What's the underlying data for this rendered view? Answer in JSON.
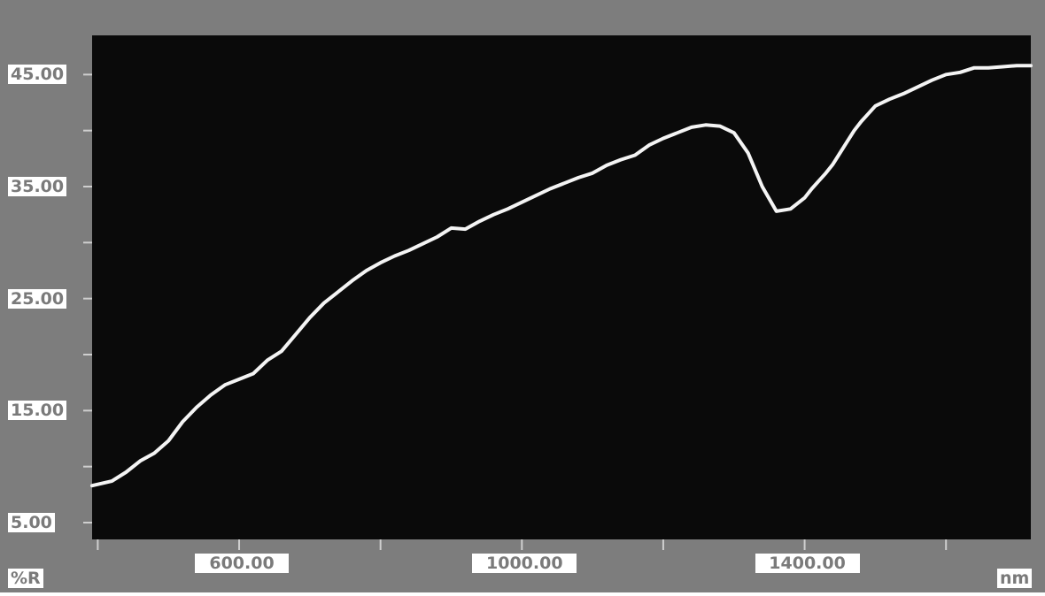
{
  "colors": {
    "frame_background": "#7d7d7d",
    "plot_background": "#0a0a0a",
    "line": "#f4f4f4",
    "label_box": "#ffffff",
    "label_text": "#7a7a7a"
  },
  "axis": {
    "y_unit_label": "%R",
    "x_unit_label": "nm"
  },
  "chart_data": {
    "type": "line",
    "xlabel": "nm",
    "ylabel": "%R",
    "xlim": [
      392,
      1720
    ],
    "ylim": [
      3.5,
      48.5
    ],
    "y_ticks_labeled": [
      "45.00",
      "35.00",
      "25.00",
      "15.00",
      "5.00"
    ],
    "y_tick_values": [
      45,
      35,
      25,
      15,
      5
    ],
    "y_minor_ticks": [
      40,
      30,
      20,
      10
    ],
    "x_ticks_labeled": [
      "600.00",
      "1000.00",
      "1400.00"
    ],
    "x_tick_values": [
      600,
      1000,
      1400
    ],
    "x_minor_ticks": [
      400,
      800,
      1200,
      1600
    ],
    "grid": false,
    "x": [
      392,
      420,
      440,
      460,
      480,
      500,
      520,
      540,
      560,
      580,
      600,
      620,
      640,
      660,
      680,
      700,
      720,
      740,
      760,
      780,
      800,
      820,
      840,
      860,
      880,
      900,
      920,
      940,
      960,
      980,
      1000,
      1020,
      1040,
      1060,
      1080,
      1100,
      1120,
      1140,
      1160,
      1180,
      1200,
      1220,
      1240,
      1260,
      1280,
      1300,
      1320,
      1340,
      1360,
      1380,
      1400,
      1410,
      1420,
      1430,
      1440,
      1450,
      1460,
      1470,
      1480,
      1490,
      1500,
      1520,
      1540,
      1560,
      1580,
      1600,
      1620,
      1640,
      1660,
      1680,
      1700,
      1720
    ],
    "series": [
      {
        "values": [
          8.3,
          8.7,
          9.5,
          10.5,
          11.2,
          12.3,
          14.0,
          15.3,
          16.4,
          17.3,
          17.8,
          18.3,
          19.5,
          20.3,
          21.8,
          23.3,
          24.6,
          25.6,
          26.6,
          27.5,
          28.2,
          28.8,
          29.3,
          29.9,
          30.5,
          31.3,
          31.2,
          31.9,
          32.5,
          33.0,
          33.6,
          34.2,
          34.8,
          35.3,
          35.8,
          36.2,
          36.9,
          37.4,
          37.8,
          38.7,
          39.3,
          39.8,
          40.3,
          40.5,
          40.4,
          39.8,
          38.0,
          35.0,
          32.8,
          33.0,
          34.0,
          34.8,
          35.5,
          36.2,
          37.0,
          38.0,
          39.0,
          40.0,
          40.8,
          41.5,
          42.2,
          42.8,
          43.3,
          43.9,
          44.5,
          45.0,
          45.2,
          45.6,
          45.6,
          45.7,
          45.8,
          45.8
        ]
      }
    ]
  }
}
